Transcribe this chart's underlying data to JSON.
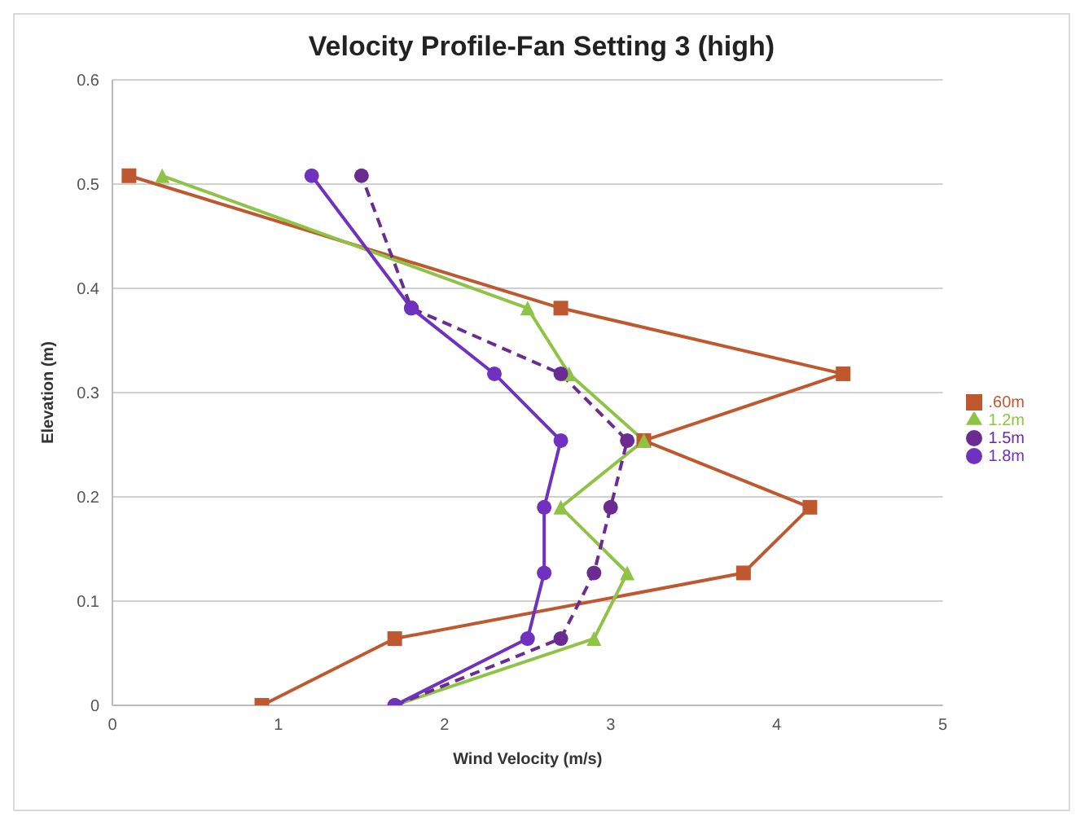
{
  "chart_data": {
    "type": "line",
    "title": "Velocity Profile-Fan Setting 3 (high)",
    "xlabel": "Wind Velocity (m/s)",
    "ylabel": "Elevation (m)",
    "xlim": [
      0,
      5
    ],
    "xticks": [
      0,
      1,
      2,
      3,
      4,
      5
    ],
    "ylim": [
      0,
      0.6
    ],
    "yticks": [
      0,
      0.1,
      0.2,
      0.3,
      0.4,
      0.5,
      0.6
    ],
    "grid": "y",
    "legend": "right",
    "series": [
      {
        "name": ".60m",
        "color": "#c0582f",
        "marker": "square",
        "line_style": "solid",
        "x": [
          0.9,
          1.7,
          3.8,
          4.2,
          3.2,
          4.4,
          2.7,
          0.1
        ],
        "values": [
          0,
          0.064,
          0.127,
          0.19,
          0.254,
          0.318,
          0.381,
          0.508
        ]
      },
      {
        "name": "1.2m",
        "color": "#8fc346",
        "marker": "triangle",
        "line_style": "solid",
        "x": [
          1.7,
          2.9,
          3.1,
          2.7,
          3.2,
          2.75,
          2.5,
          0.3
        ],
        "values": [
          0,
          0.064,
          0.127,
          0.19,
          0.254,
          0.318,
          0.381,
          0.508
        ]
      },
      {
        "name": "1.5m",
        "color": "#6a2c91",
        "marker": "circle",
        "line_style": "dashed",
        "x": [
          1.7,
          2.7,
          2.9,
          3.0,
          3.1,
          2.7,
          1.8,
          1.5
        ],
        "values": [
          0,
          0.064,
          0.127,
          0.19,
          0.254,
          0.318,
          0.381,
          0.508
        ]
      },
      {
        "name": "1.8m",
        "color": "#7030c0",
        "marker": "circle",
        "line_style": "solid",
        "x": [
          1.7,
          2.5,
          2.6,
          2.6,
          2.7,
          2.3,
          1.8,
          1.2
        ],
        "values": [
          0,
          0.064,
          0.127,
          0.19,
          0.254,
          0.318,
          0.381,
          0.508
        ]
      }
    ]
  }
}
